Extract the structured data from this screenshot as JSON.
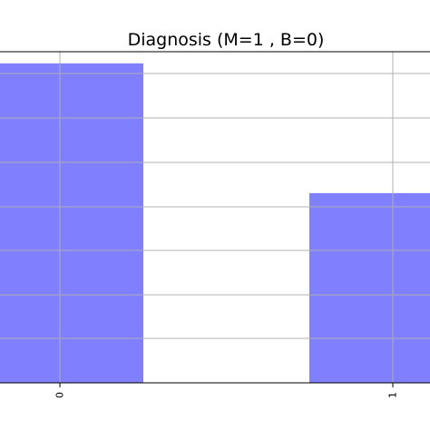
{
  "chart_data": {
    "type": "bar",
    "title": "Diagnosis (M=1 , B=0)",
    "xlabel": "",
    "ylabel": "",
    "categories": [
      "0",
      "1"
    ],
    "values": [
      357,
      212
    ],
    "ylim": [
      0,
      370
    ],
    "grid": true,
    "bar_color": "#8080ff",
    "grid_color": "#b0b0b0"
  }
}
